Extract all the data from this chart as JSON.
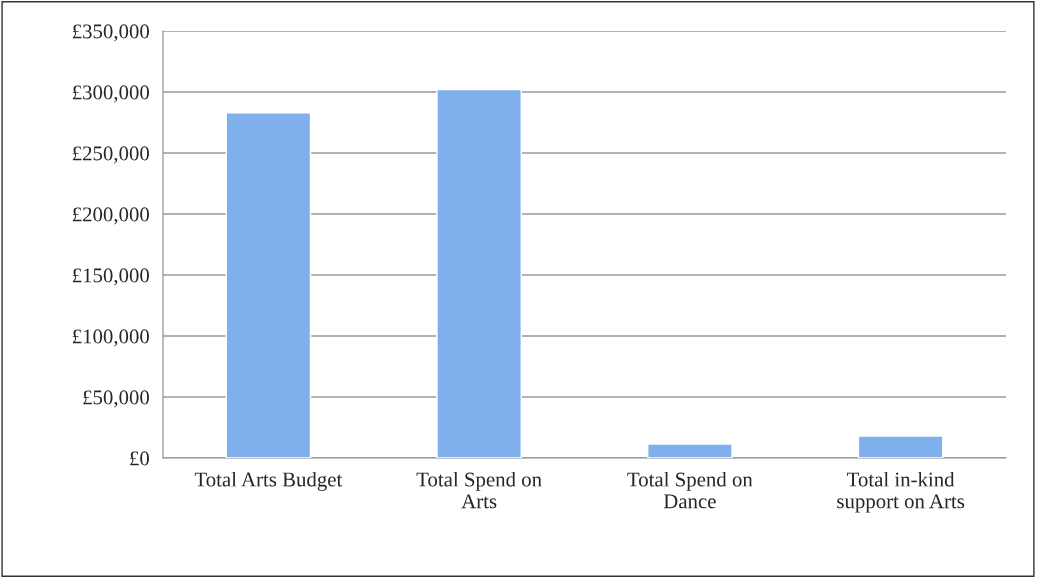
{
  "chart_data": {
    "type": "bar",
    "categories": [
      "Total Arts Budget",
      "Total Spend on\nArts",
      "Total Spend on\nDance",
      "Total in-kind\nsupport on Arts"
    ],
    "values": [
      283000,
      302000,
      11500,
      18000
    ],
    "color": "#7fb0ec",
    "ylim": [
      0,
      350000
    ],
    "yticks": [
      {
        "value": 0,
        "label": "£0"
      },
      {
        "value": 50000,
        "label": "£50,000"
      },
      {
        "value": 100000,
        "label": "£100,000"
      },
      {
        "value": 150000,
        "label": "£150,000"
      },
      {
        "value": 200000,
        "label": "£200,000"
      },
      {
        "value": 250000,
        "label": "£250,000"
      },
      {
        "value": 300000,
        "label": "£300,000"
      },
      {
        "value": 350000,
        "label": "£350,000"
      }
    ],
    "grid": "y",
    "legend": false
  }
}
